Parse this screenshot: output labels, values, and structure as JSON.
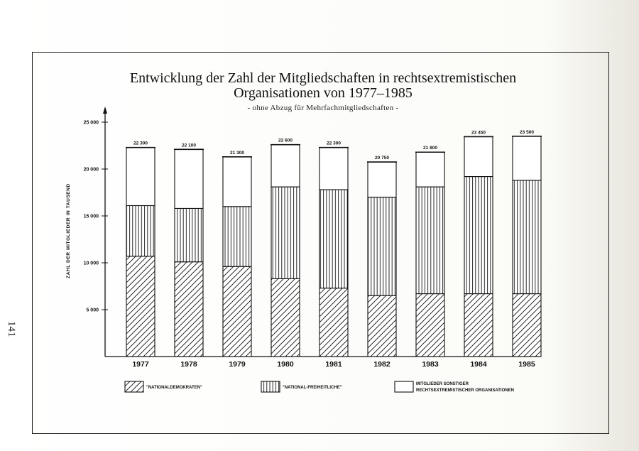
{
  "page_number": "141",
  "chart_data": {
    "type": "bar",
    "stacked": true,
    "title": "Entwicklung der Zahl der Mitgliedschaften in rechtsextremistischen Organisationen von 1977–1985",
    "title_line1": "Entwicklung der Zahl der Mitgliedschaften in rechtsextremistischen",
    "title_line2": "Organisationen von 1977–1985",
    "subtitle": "- ohne Abzug für Mehrfachmitgliedschaften -",
    "ylabel": "ZAHL DER MITGLIEDER IN TAUSEND",
    "xlabel": "",
    "ylim": [
      0,
      25000
    ],
    "yticks": [
      5000,
      10000,
      15000,
      20000,
      25000
    ],
    "ytick_labels": [
      "5 000",
      "10 000",
      "15 000",
      "20 000",
      "25 000"
    ],
    "categories": [
      "1977",
      "1978",
      "1979",
      "1980",
      "1981",
      "1982",
      "1983",
      "1984",
      "1985"
    ],
    "totals": [
      22300,
      22100,
      21300,
      22600,
      22300,
      20750,
      21800,
      23450,
      23500
    ],
    "total_labels": [
      "22 300",
      "22 100",
      "21 300",
      "22 600",
      "22 300",
      "20 750",
      "21 800",
      "23 450",
      "23 500"
    ],
    "series": [
      {
        "name": "\"NATIONALDEMOKRATEN\"",
        "pattern": "diagonal-hatch",
        "values": [
          10700,
          10100,
          9600,
          8300,
          7300,
          6500,
          6700,
          6700,
          6700
        ]
      },
      {
        "name": "\"NATIONAL-FREIHEITLICHE\"",
        "pattern": "vertical-lines",
        "values": [
          5400,
          5700,
          6400,
          9800,
          10500,
          10500,
          11400,
          12500,
          12100
        ]
      },
      {
        "name": "MITGLIEDER SONSTIGER RECHTSEXTREMISTISCHER ORGANISATIONEN",
        "pattern": "blank",
        "values": [
          6200,
          6300,
          5300,
          4500,
          4500,
          3750,
          3700,
          4250,
          4700
        ]
      }
    ],
    "legend": [
      {
        "label": "\"NATIONALDEMOKRATEN\"",
        "pattern": "diagonal-hatch"
      },
      {
        "label": "\"NATIONAL-FREIHEITLICHE\"",
        "pattern": "vertical-lines"
      },
      {
        "label_line1": "MITGLIEDER SONSTIGER",
        "label_line2": "RECHTSEXTREMISTISCHER ORGANISATIONEN",
        "pattern": "blank"
      }
    ],
    "legend_position": "bottom",
    "grid": false,
    "colors": {
      "ink": "#111111",
      "paper": "#ffffff"
    }
  }
}
